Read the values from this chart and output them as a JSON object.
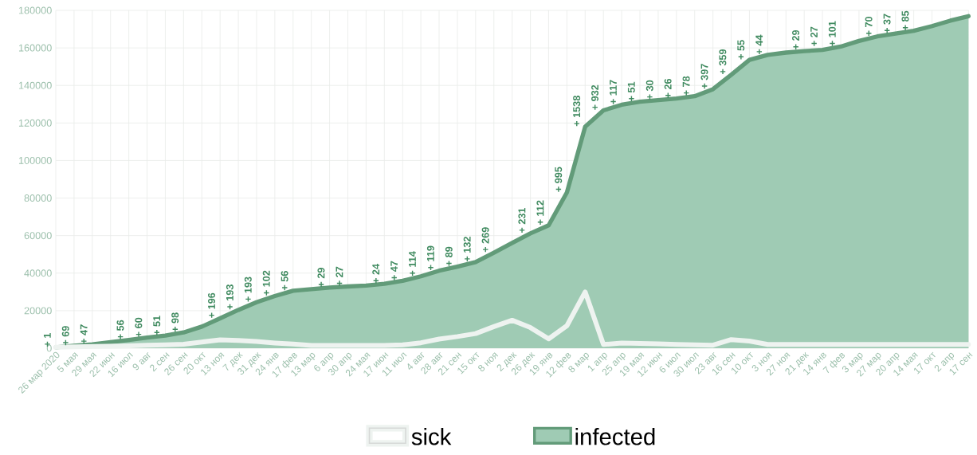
{
  "chart_data": {
    "type": "area",
    "categories": [
      "26 мар 2020",
      "5 мая",
      "29 мая",
      "22 июн",
      "16 июл",
      "9 авг",
      "2 сен",
      "26 сен",
      "20 окт",
      "13 ноя",
      "7 дек",
      "31 дек",
      "24 янв",
      "17 фев",
      "13 мар",
      "6 апр",
      "30 апр",
      "24 мая",
      "17 июн",
      "11 июл",
      "4 авг",
      "28 авг",
      "21 сен",
      "15 окт",
      "8 ноя",
      "2 дек",
      "26 дек",
      "19 янв",
      "12 фев",
      "8 мар",
      "1 апр",
      "25 апр",
      "19 мая",
      "12 июн",
      "6 июл",
      "30 июл",
      "23 авг",
      "16 сен",
      "10 окт",
      "3 ноя",
      "27 ноя",
      "21 дек",
      "14 янв",
      "7 фев",
      "3 мар",
      "27 мар",
      "20 апр",
      "14 мая",
      "17 окт",
      "2 апр",
      "17 сен"
    ],
    "ylim": [
      0,
      180000
    ],
    "yticks": [
      0,
      20000,
      40000,
      60000,
      80000,
      100000,
      120000,
      140000,
      160000,
      180000
    ],
    "grid": true,
    "legend": "bottom",
    "series": [
      {
        "name": "sick",
        "type": "line",
        "color": "#eef3f0",
        "values": [
          500,
          700,
          900,
          1100,
          1300,
          1600,
          1800,
          2100,
          3300,
          4500,
          4100,
          3600,
          2800,
          2200,
          1500,
          1500,
          1500,
          1500,
          1500,
          1800,
          2900,
          4900,
          6200,
          7800,
          11500,
          14900,
          11000,
          5000,
          12000,
          30000,
          2000,
          2800,
          2500,
          2300,
          2000,
          1800,
          1600,
          4600,
          3800,
          2000,
          2000,
          2000,
          2000,
          2000,
          2000,
          2000,
          2000,
          2000,
          2000,
          2000,
          2000
        ]
      },
      {
        "name": "infected",
        "color": "#9fcbb4",
        "values": [
          500,
          1300,
          2100,
          3200,
          4400,
          5700,
          6700,
          8400,
          11500,
          15900,
          20400,
          24500,
          27800,
          30600,
          31500,
          32300,
          32900,
          33400,
          34300,
          35900,
          38300,
          41300,
          43500,
          45900,
          50900,
          56100,
          61200,
          65500,
          83000,
          118000,
          126700,
          129700,
          131300,
          132200,
          133000,
          134300,
          138000,
          145700,
          153600,
          156300,
          157500,
          158300,
          158900,
          160700,
          163700,
          166100,
          167600,
          169100,
          171600,
          174500,
          176900
        ]
      }
    ],
    "annotations": [
      {
        "text": "+ 1",
        "x": "26 мар 2020",
        "y": 500
      },
      {
        "text": "+ 69",
        "x": "5 мая",
        "y": 1300
      },
      {
        "text": "+ 47",
        "x": "29 мая",
        "y": 2100
      },
      {
        "text": "+ 56",
        "x": "16 июл",
        "y": 4400
      },
      {
        "text": "+ 60",
        "x": "9 авг",
        "y": 5700
      },
      {
        "text": "+ 51",
        "x": "2 сен",
        "y": 6700
      },
      {
        "text": "+ 98",
        "x": "26 сен",
        "y": 8400
      },
      {
        "text": "+ 196",
        "x": "13 ноя",
        "y": 15900
      },
      {
        "text": "+ 193",
        "x": "7 дек",
        "y": 20400
      },
      {
        "text": "+ 193",
        "x": "31 дек",
        "y": 24500
      },
      {
        "text": "+ 102",
        "x": "24 янв",
        "y": 27800
      },
      {
        "text": "+ 56",
        "x": "17 фев",
        "y": 30600
      },
      {
        "text": "+ 29",
        "x": "6 апр",
        "y": 32300
      },
      {
        "text": "+ 27",
        "x": "30 апр",
        "y": 32900
      },
      {
        "text": "+ 24",
        "x": "17 июн",
        "y": 34300
      },
      {
        "text": "+ 47",
        "x": "11 июл",
        "y": 35900
      },
      {
        "text": "+ 114",
        "x": "4 авг",
        "y": 38300
      },
      {
        "text": "+ 119",
        "x": "28 авг",
        "y": 41300
      },
      {
        "text": "+ 89",
        "x": "21 сен",
        "y": 43500
      },
      {
        "text": "+ 132",
        "x": "15 окт",
        "y": 45900
      },
      {
        "text": "+ 269",
        "x": "8 ноя",
        "y": 50900
      },
      {
        "text": "+ 231",
        "x": "26 дек",
        "y": 61200
      },
      {
        "text": "+ 112",
        "x": "19 янв",
        "y": 65500
      },
      {
        "text": "+ 995",
        "x": "12 фев",
        "y": 83000
      },
      {
        "text": "+ 1538",
        "x": "8 мар",
        "y": 118000
      },
      {
        "text": "+ 932",
        "x": "1 апр",
        "y": 126700
      },
      {
        "text": "+ 117",
        "x": "25 апр",
        "y": 129700
      },
      {
        "text": "+ 51",
        "x": "19 мая",
        "y": 131300
      },
      {
        "text": "+ 30",
        "x": "12 июн",
        "y": 132200
      },
      {
        "text": "+ 26",
        "x": "6 июл",
        "y": 133000
      },
      {
        "text": "+ 78",
        "x": "30 июл",
        "y": 134300
      },
      {
        "text": "+ 397",
        "x": "23 авг",
        "y": 138000
      },
      {
        "text": "+ 359",
        "x": "16 сен",
        "y": 145700
      },
      {
        "text": "+ 55",
        "x": "10 окт",
        "y": 153600
      },
      {
        "text": "+ 44",
        "x": "3 ноя",
        "y": 156300
      },
      {
        "text": "+ 29",
        "x": "21 дек",
        "y": 158900
      },
      {
        "text": "+ 27",
        "x": "14 янв",
        "y": 160700
      },
      {
        "text": "+ 101",
        "x": "7 фев",
        "y": 160700
      },
      {
        "text": "+ 70",
        "x": "27 мар",
        "y": 166100
      },
      {
        "text": "+ 37",
        "x": "20 апр",
        "y": 167600
      },
      {
        "text": "+ 85",
        "x": "14 мая",
        "y": 169100
      }
    ]
  }
}
